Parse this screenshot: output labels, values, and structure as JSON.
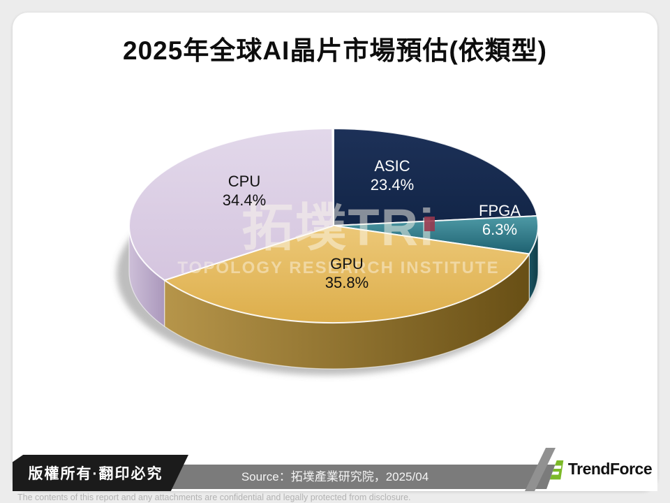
{
  "page": {
    "background": "#ececec",
    "card_color": "#ffffff"
  },
  "title": "2025年全球AI晶片市場預估(依類型)",
  "watermark": {
    "logo_text": "拓墣TRi",
    "subtitle": "TOPOLOGY RESEARCH INSTITUTE",
    "dot_color": "#99384d"
  },
  "chart_data": {
    "type": "pie",
    "style": "3d-exploded-none",
    "title": "2025年全球AI晶片市場預估(依類型)",
    "unit": "%",
    "start_angle_deg": 0,
    "direction": "clockwise",
    "slices": [
      {
        "label": "ASIC",
        "value": 23.4,
        "display": "23.4%",
        "top_colors": [
          "#1d3158",
          "#122547"
        ],
        "side_colors": [
          "#14304f",
          "#0d2038"
        ],
        "label_color": "#ffffff"
      },
      {
        "label": "FPGA",
        "value": 6.3,
        "display": "6.3%",
        "top_colors": [
          "#4e9aa6",
          "#1e6170"
        ],
        "side_colors": [
          "#1a5260",
          "#103d48"
        ],
        "label_color": "#ffffff"
      },
      {
        "label": "GPU",
        "value": 35.8,
        "display": "35.8%",
        "top_colors": [
          "#ecc878",
          "#ddae4b"
        ],
        "side_colors": [
          "#b6954a",
          "#684f15"
        ],
        "label_color": "#111111"
      },
      {
        "label": "CPU",
        "value": 34.4,
        "display": "34.4%",
        "top_colors": [
          "#e2d8ea",
          "#d5c5df"
        ],
        "side_colors": [
          "#cdbfd8",
          "#ab98bc"
        ],
        "label_color": "#111111"
      }
    ]
  },
  "footer": {
    "copyright": "版權所有·翻印必究",
    "source": "Source：拓墣產業研究院，2025/04",
    "brand": "TrendForce",
    "disclaimer": "The contents of this report and any attachments are confidential and legally protected from disclosure.",
    "bar_color": "#7b7b7b",
    "tab_color": "#1b1b1b",
    "brand_green": "#7cb928"
  }
}
